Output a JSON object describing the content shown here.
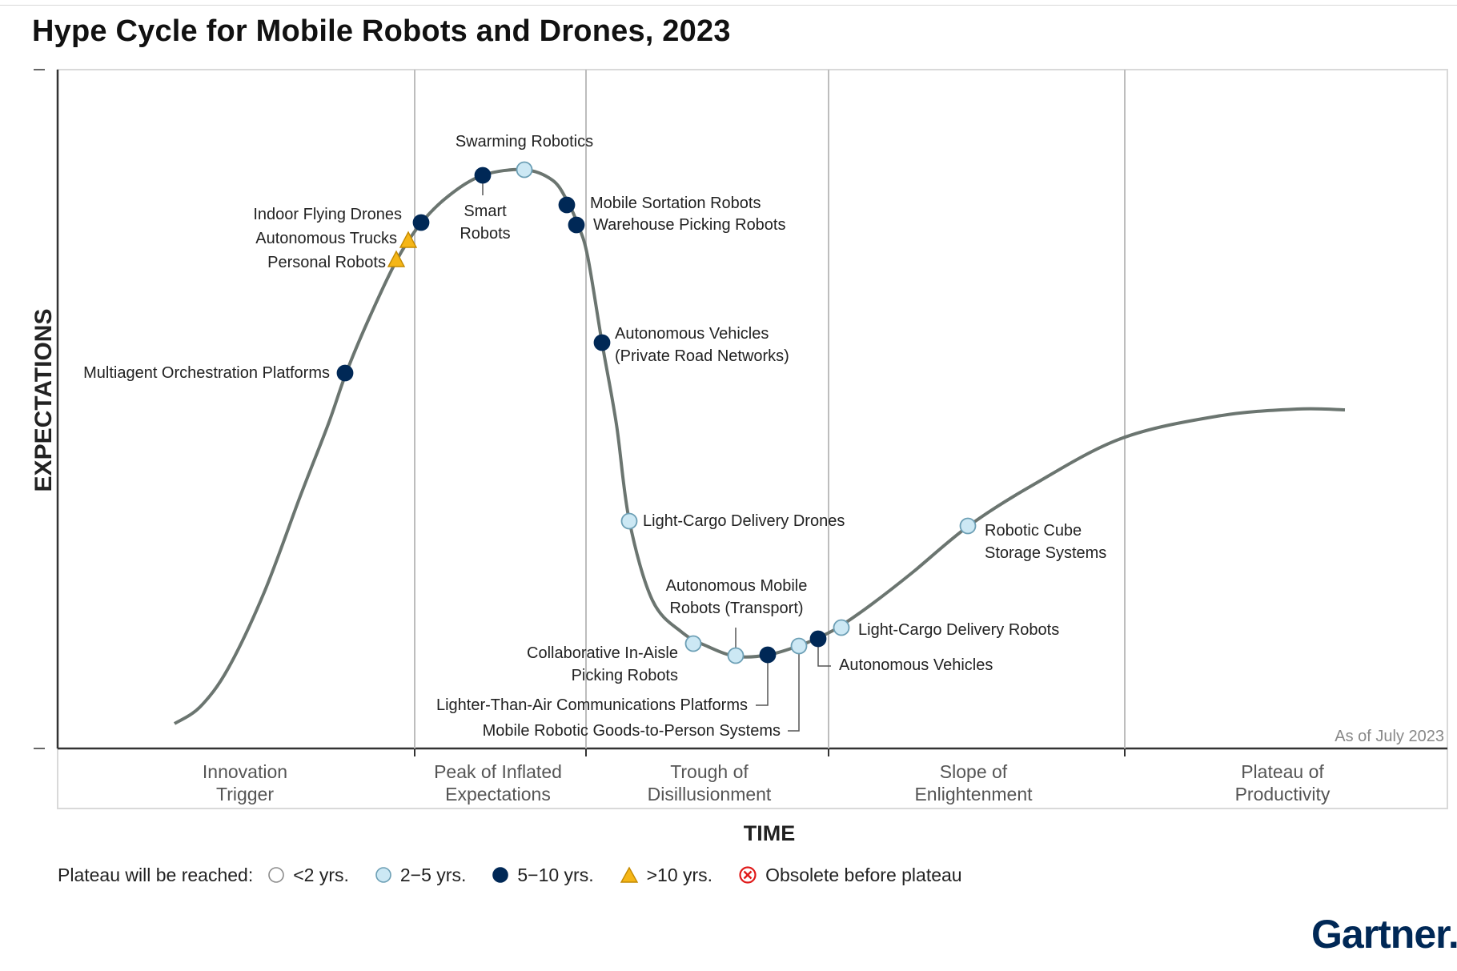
{
  "title": "Hype Cycle for Mobile Robots and Drones, 2023",
  "chart_data": {
    "type": "hype-cycle",
    "title": "Hype Cycle for Mobile Robots and Drones, 2023",
    "ylabel": "EXPECTATIONS",
    "xlabel": "TIME",
    "note": "As of July 2023",
    "phases": [
      {
        "lines": [
          "Innovation",
          "Trigger"
        ]
      },
      {
        "lines": [
          "Peak of Inflated",
          "Expectations"
        ]
      },
      {
        "lines": [
          "Trough of",
          "Disillusionment"
        ]
      },
      {
        "lines": [
          "Slope of",
          "Enlightenment"
        ]
      },
      {
        "lines": [
          "Plateau of",
          "Productivity"
        ]
      }
    ],
    "technologies": [
      {
        "name": "Multiagent Orchestration Platforms",
        "lines": [
          "Multiagent Orchestration Platforms"
        ],
        "category": "5-10"
      },
      {
        "name": "Personal Robots",
        "lines": [
          "Personal Robots"
        ],
        "category": ">10"
      },
      {
        "name": "Autonomous Trucks",
        "lines": [
          "Autonomous Trucks"
        ],
        "category": ">10"
      },
      {
        "name": "Indoor Flying Drones",
        "lines": [
          "Indoor Flying Drones"
        ],
        "category": "5-10"
      },
      {
        "name": "Smart Robots",
        "lines": [
          "Smart",
          "Robots"
        ],
        "category": "5-10"
      },
      {
        "name": "Swarming Robotics",
        "lines": [
          "Swarming Robotics"
        ],
        "category": "2-5"
      },
      {
        "name": "Mobile Sortation Robots",
        "lines": [
          "Mobile Sortation Robots"
        ],
        "category": "5-10"
      },
      {
        "name": "Warehouse Picking Robots",
        "lines": [
          "Warehouse Picking Robots"
        ],
        "category": "5-10"
      },
      {
        "name": "Autonomous Vehicles (Private Road Networks)",
        "lines": [
          "Autonomous Vehicles",
          "(Private Road Networks)"
        ],
        "category": "5-10"
      },
      {
        "name": "Light-Cargo Delivery Drones",
        "lines": [
          "Light-Cargo Delivery Drones"
        ],
        "category": "2-5"
      },
      {
        "name": "Collaborative In-Aisle Picking Robots",
        "lines": [
          "Collaborative In-Aisle",
          "Picking Robots"
        ],
        "category": "2-5"
      },
      {
        "name": "Autonomous Mobile Robots (Transport)",
        "lines": [
          "Autonomous Mobile",
          "Robots (Transport)"
        ],
        "category": "2-5"
      },
      {
        "name": "Lighter-Than-Air Communications Platforms",
        "lines": [
          "Lighter-Than-Air Communications Platforms"
        ],
        "category": "5-10"
      },
      {
        "name": "Mobile Robotic Goods-to-Person Systems",
        "lines": [
          "Mobile Robotic Goods-to-Person Systems"
        ],
        "category": "2-5"
      },
      {
        "name": "Autonomous Vehicles",
        "lines": [
          "Autonomous Vehicles"
        ],
        "category": "5-10"
      },
      {
        "name": "Light-Cargo Delivery Robots",
        "lines": [
          "Light-Cargo Delivery Robots"
        ],
        "category": "2-5"
      },
      {
        "name": "Robotic Cube Storage Systems",
        "lines": [
          "Robotic Cube",
          "Storage Systems"
        ],
        "category": "2-5"
      }
    ]
  },
  "legend": {
    "label": "Plateau will be reached:",
    "items": [
      {
        "key": "<2",
        "label": "<2 yrs."
      },
      {
        "key": "2-5",
        "label": "2−5 yrs."
      },
      {
        "key": "5-10",
        "label": "5−10 yrs."
      },
      {
        "key": ">10",
        "label": ">10 yrs."
      },
      {
        "key": "obsolete",
        "label": "Obsolete before plateau"
      }
    ]
  },
  "colors": {
    "lt2": "#ffffff",
    "c2_5": "#cce8f4",
    "c5_10": "#002856",
    "gt10": "#f5b617",
    "obsolete": "#e01a1a",
    "curve": "#6b7570"
  },
  "logo": "Gartner"
}
